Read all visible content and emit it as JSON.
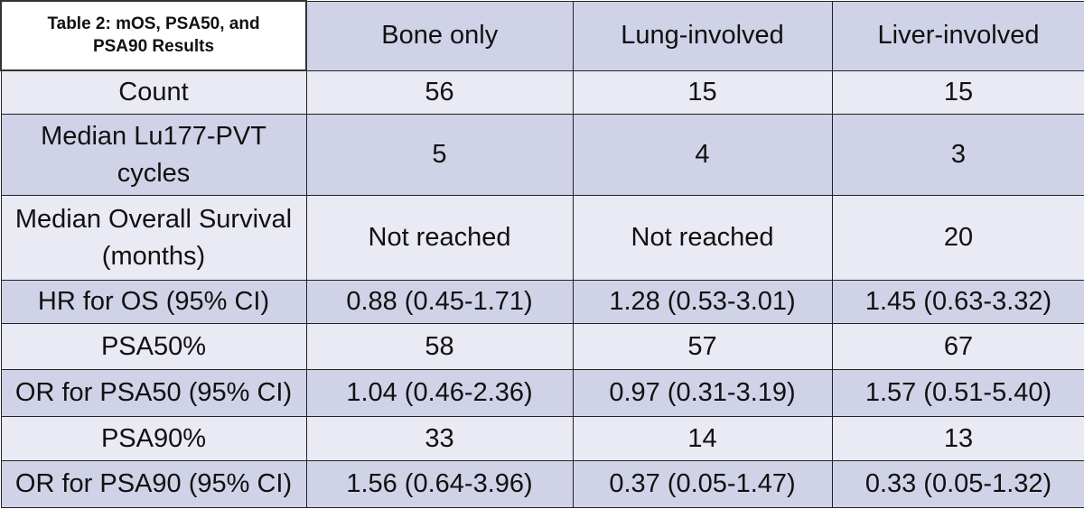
{
  "header": {
    "title": "Table 2: mOS, PSA50, and PSA90 Results",
    "columns": [
      "Bone only",
      "Lung-involved",
      "Liver-involved"
    ]
  },
  "table": {
    "rows": [
      [
        "Count",
        "56",
        "15",
        "15"
      ],
      [
        "Median Lu177-PVT cycles",
        "5",
        "4",
        "3"
      ],
      [
        "Median Overall Survival (months)",
        "Not reached",
        "Not reached",
        "20"
      ],
      [
        "HR for OS (95% CI)",
        "0.88 (0.45-1.71)",
        "1.28 (0.53-3.01)",
        "1.45 (0.63-3.32)"
      ],
      [
        "PSA50%",
        "58",
        "57",
        "67"
      ],
      [
        "OR for PSA50 (95% CI)",
        "1.04 (0.46-2.36)",
        "0.97 (0.31-3.19)",
        "1.57 (0.51-5.40)"
      ],
      [
        "PSA90%",
        "33",
        "14",
        "13"
      ],
      [
        "OR for PSA90 (95% CI)",
        "1.56 (0.64-3.96)",
        "0.37 (0.05-1.47)",
        "0.33 (0.05-1.32)"
      ]
    ]
  }
}
